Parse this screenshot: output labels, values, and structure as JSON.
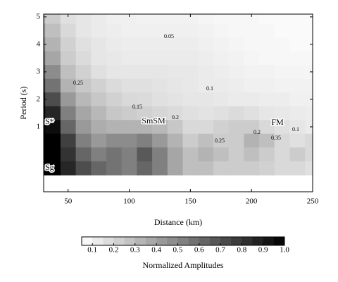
{
  "chart_data": {
    "type": "contour",
    "x_label": "Distance (km)",
    "y_label": "Period (s)",
    "xlim": [
      30,
      250
    ],
    "ylim": [
      -1.36,
      5.1
    ],
    "xticks": [
      50,
      100,
      150,
      200,
      250
    ],
    "yticks": [
      1,
      2,
      3,
      4,
      5
    ],
    "x": [
      25,
      37.5,
      50,
      62.5,
      75,
      87.5,
      100,
      112.5,
      125,
      137.5,
      150,
      162.5,
      175,
      187.5,
      200,
      212.5,
      225,
      237.5,
      250
    ],
    "y": [
      5,
      4.5,
      4,
      3.5,
      3,
      2.5,
      2,
      1.5,
      1,
      0.5,
      0,
      -0.5
    ],
    "z": [
      [
        0.3,
        0.2,
        0.12,
        0.1,
        0.08,
        0.06,
        0.06,
        0.05,
        0.05,
        0.05,
        0.05,
        0.04,
        0.03,
        0.03,
        0.03,
        0.02,
        0.02,
        0.02,
        0.02
      ],
      [
        0.4,
        0.25,
        0.15,
        0.1,
        0.08,
        0.07,
        0.06,
        0.06,
        0.06,
        0.06,
        0.06,
        0.05,
        0.04,
        0.03,
        0.03,
        0.03,
        0.02,
        0.02,
        0.02
      ],
      [
        0.5,
        0.3,
        0.18,
        0.12,
        0.1,
        0.08,
        0.07,
        0.07,
        0.07,
        0.07,
        0.07,
        0.06,
        0.05,
        0.04,
        0.03,
        0.03,
        0.03,
        0.02,
        0.02
      ],
      [
        0.6,
        0.35,
        0.2,
        0.14,
        0.1,
        0.09,
        0.08,
        0.08,
        0.08,
        0.08,
        0.08,
        0.07,
        0.06,
        0.05,
        0.04,
        0.03,
        0.03,
        0.03,
        0.03
      ],
      [
        0.7,
        0.45,
        0.25,
        0.18,
        0.12,
        0.1,
        0.1,
        0.1,
        0.1,
        0.09,
        0.09,
        0.08,
        0.07,
        0.06,
        0.05,
        0.05,
        0.04,
        0.04,
        0.04
      ],
      [
        0.8,
        0.55,
        0.3,
        0.22,
        0.18,
        0.14,
        0.12,
        0.12,
        0.11,
        0.1,
        0.09,
        0.08,
        0.08,
        0.07,
        0.06,
        0.06,
        0.05,
        0.05,
        0.05
      ],
      [
        0.95,
        0.7,
        0.4,
        0.28,
        0.22,
        0.18,
        0.15,
        0.14,
        0.12,
        0.11,
        0.1,
        0.1,
        0.09,
        0.08,
        0.08,
        0.07,
        0.07,
        0.06,
        0.06
      ],
      [
        1,
        0.85,
        0.5,
        0.35,
        0.28,
        0.22,
        0.2,
        0.18,
        0.16,
        0.14,
        0.12,
        0.11,
        0.12,
        0.14,
        0.12,
        0.1,
        0.09,
        0.08,
        0.07
      ],
      [
        1,
        0.95,
        0.6,
        0.4,
        0.32,
        0.3,
        0.3,
        0.3,
        0.28,
        0.22,
        0.15,
        0.15,
        0.18,
        0.2,
        0.2,
        0.15,
        0.12,
        0.1,
        0.08
      ],
      [
        1,
        1,
        0.75,
        0.5,
        0.4,
        0.45,
        0.45,
        0.5,
        0.4,
        0.3,
        0.2,
        0.25,
        0.2,
        0.2,
        0.3,
        0.25,
        0.15,
        0.12,
        0.15
      ],
      [
        1,
        1,
        0.8,
        0.6,
        0.5,
        0.55,
        0.5,
        0.65,
        0.5,
        0.35,
        0.25,
        0.3,
        0.25,
        0.2,
        0.25,
        0.2,
        0.15,
        0.2,
        0.15
      ],
      [
        1,
        1,
        0.85,
        0.7,
        0.6,
        0.55,
        0.5,
        0.6,
        0.5,
        0.35,
        0.25,
        0.25,
        0.2,
        0.2,
        0.2,
        0.18,
        0.15,
        0.15,
        0.12
      ]
    ],
    "annotations": [
      "S*",
      "Sg",
      "SmSM",
      "FM"
    ],
    "contour_labels": [
      "0.05",
      "0.1",
      "0.15",
      "0.2",
      "0.25",
      "0.25",
      "0.2",
      "0.35",
      "0.1"
    ],
    "colorbar": {
      "label": "Normalized Amplitudes",
      "clim": [
        0.05,
        1.0
      ],
      "ticks": [
        0.1,
        0.2,
        0.3,
        0.4,
        0.5,
        0.6,
        0.7,
        0.8,
        0.9,
        {
          "value": 1.0,
          "label": "1.0"
        }
      ]
    }
  }
}
